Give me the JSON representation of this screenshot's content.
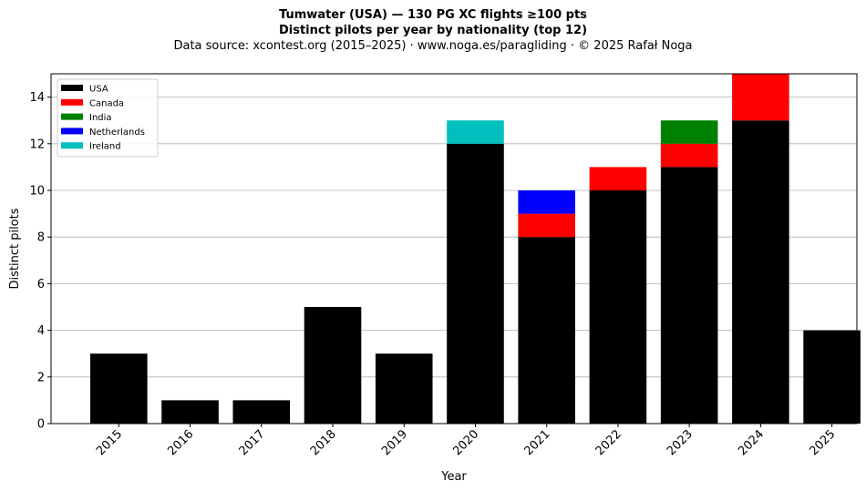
{
  "header": {
    "title": "Tumwater (USA)  —  130 PG XC flights ≥100 pts",
    "subtitle": "Distinct pilots per year by nationality (top 12)",
    "source": "Data source: xcontest.org (2015–2025)  ·  www.noga.es/paragliding  ·  © 2025 Rafał Noga"
  },
  "chart_data": {
    "type": "bar",
    "stacked": true,
    "title": "Tumwater (USA)  —  130 PG XC flights ≥100 pts",
    "subtitle": "Distinct pilots per year by nationality (top 12)",
    "xlabel": "Year",
    "ylabel": "Distinct pilots",
    "ylim": [
      0,
      15
    ],
    "yticks": [
      0,
      2,
      4,
      6,
      8,
      10,
      12,
      14
    ],
    "grid": "horizontal",
    "legend_position": "top-left",
    "categories": [
      "2015",
      "2016",
      "2017",
      "2018",
      "2019",
      "2020",
      "2021",
      "2022",
      "2023",
      "2024",
      "2025"
    ],
    "series": [
      {
        "name": "USA",
        "color": "#000000",
        "values": [
          3,
          1,
          1,
          5,
          3,
          12,
          8,
          10,
          11,
          13,
          4
        ]
      },
      {
        "name": "Canada",
        "color": "#ff0000",
        "values": [
          0,
          0,
          0,
          0,
          0,
          0,
          1,
          1,
          1,
          2,
          0
        ]
      },
      {
        "name": "India",
        "color": "#008000",
        "values": [
          0,
          0,
          0,
          0,
          0,
          0,
          0,
          0,
          1,
          0,
          0
        ]
      },
      {
        "name": "Netherlands",
        "color": "#0000ff",
        "values": [
          0,
          0,
          0,
          0,
          0,
          0,
          1,
          0,
          0,
          0,
          0
        ]
      },
      {
        "name": "Ireland",
        "color": "#00bfbf",
        "values": [
          0,
          0,
          0,
          0,
          0,
          1,
          0,
          0,
          0,
          0,
          0
        ]
      }
    ]
  }
}
